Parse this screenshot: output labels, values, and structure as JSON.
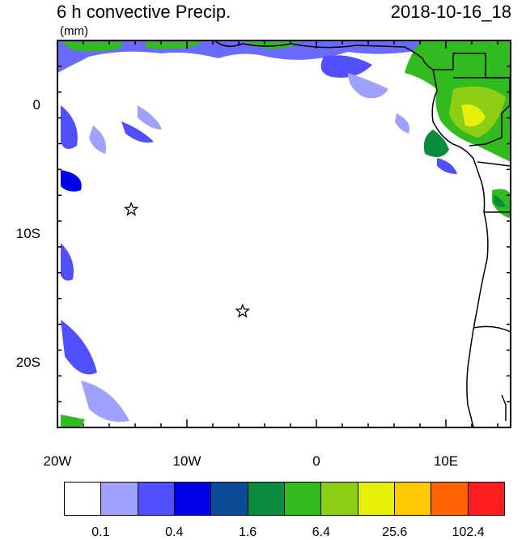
{
  "title_left": "6 h convective Precip.",
  "title_right": "2018-10-16_18",
  "units": "(mm)",
  "map_extent": {
    "lon_min": -20,
    "lon_max": 15,
    "lat_min": -25,
    "lat_max": 5
  },
  "x_axis": {
    "ticks": [
      {
        "lon": -20,
        "label": "20W"
      },
      {
        "lon": -10,
        "label": "10W"
      },
      {
        "lon": 0,
        "label": "0"
      },
      {
        "lon": 10,
        "label": "10E"
      }
    ]
  },
  "y_axis": {
    "ticks": [
      {
        "lat": 0,
        "label": "0"
      },
      {
        "lat": -10,
        "label": "10S"
      },
      {
        "lat": -20,
        "label": "20S"
      }
    ]
  },
  "markers": [
    {
      "name": "star",
      "lon": -14.3,
      "lat": -8.1
    },
    {
      "name": "star",
      "lon": -5.7,
      "lat": -16.0
    }
  ],
  "colorbar": {
    "colors": [
      "#ffffff",
      "#a0a0ff",
      "#5050ff",
      "#0000e6",
      "#0a4a96",
      "#0a8c3c",
      "#32bb1e",
      "#8ccf14",
      "#e6f00a",
      "#ffc800",
      "#ff6400",
      "#ff1e1e"
    ],
    "labels": [
      {
        "index": 1,
        "text": "0.1"
      },
      {
        "index": 3,
        "text": "0.4"
      },
      {
        "index": 5,
        "text": "1.6"
      },
      {
        "index": 7,
        "text": "6.4"
      },
      {
        "index": 9,
        "text": "25.6"
      },
      {
        "index": 11,
        "text": "102.4"
      }
    ]
  }
}
